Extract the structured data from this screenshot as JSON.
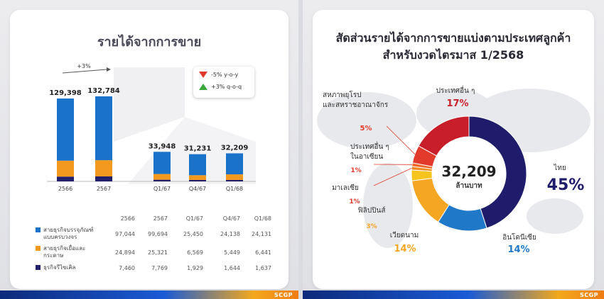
{
  "left": {
    "title": "รายได้จากการขาย",
    "growth_label": "+3%",
    "legend": {
      "yoy": "-5% y-o-y",
      "qoq": "+3% q-o-q"
    }
  },
  "right": {
    "title_line1": "สัดส่วนรายได้จากการขายแบ่งตามประเทศลูกค้า",
    "title_line2": "สำหรับงวดไตรมาส 1/2568",
    "center_value": "32,209",
    "center_unit": "ล้านบาท"
  },
  "logo": "SCGP",
  "chart_data": [
    {
      "type": "bar",
      "stacked": true,
      "categories": [
        "2566",
        "2567",
        "Q1/67",
        "Q4/67",
        "Q1/68"
      ],
      "total_labels": [
        "129,398",
        "132,784",
        "33,948",
        "31,231",
        "32,209"
      ],
      "series": [
        {
          "name": "สายธุรกิจบรรจุภัณฑ์แบบครบวงจร",
          "color": "#1b72c9",
          "values": [
            97044,
            99694,
            25450,
            24138,
            24131
          ],
          "labels": [
            "97,044",
            "99,694",
            "25,450",
            "24,138",
            "24,131"
          ]
        },
        {
          "name": "สายธุรกิจเยื่อและกระดาษ",
          "color": "#f39a1e",
          "values": [
            24894,
            25321,
            6569,
            5449,
            6441
          ],
          "labels": [
            "24,894",
            "25,321",
            "6,569",
            "5,449",
            "6,441"
          ]
        },
        {
          "name": "ธุรกิจรีไซเคิล",
          "color": "#23206b",
          "values": [
            7460,
            7769,
            1929,
            1644,
            1637
          ],
          "labels": [
            "7,460",
            "7,769",
            "1,929",
            "1,644",
            "1,637"
          ]
        }
      ]
    },
    {
      "type": "pie",
      "donut": true,
      "slices": [
        {
          "name": "ไทย",
          "value": 45,
          "label": "45%",
          "color": "#1f1d6b"
        },
        {
          "name": "อินโดนีเซีย",
          "value": 14,
          "label": "14%",
          "color": "#1f78c8"
        },
        {
          "name": "เวียดนาม",
          "value": 14,
          "label": "14%",
          "color": "#f5a623"
        },
        {
          "name": "ฟิลิปปินส์",
          "value": 3,
          "label": "3%",
          "color": "#f7c31f"
        },
        {
          "name": "มาเลเซีย",
          "value": 1,
          "label": "1%",
          "color": "#f08a24"
        },
        {
          "name": "ประเทศอื่น ๆ ในอาเซียน",
          "value": 1,
          "label": "1%",
          "color": "#ef6a2a"
        },
        {
          "name": "สหภาพยุโรป และสหราชอาณาจักร",
          "value": 5,
          "label": "5%",
          "color": "#e23b2c"
        },
        {
          "name": "ประเทศอื่น ๆ",
          "value": 17,
          "label": "17%",
          "color": "#c81e2a"
        }
      ]
    }
  ]
}
